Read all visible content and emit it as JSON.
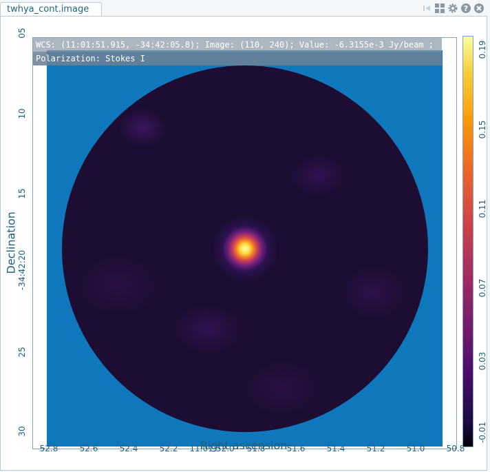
{
  "tab": {
    "label": "twhya_cont.image"
  },
  "toolbar": {
    "icons": [
      "first-frame-icon",
      "layout-grid-icon",
      "settings-gear-icon",
      "help-icon",
      "close-icon"
    ]
  },
  "cursor_info": {
    "wcs_line": "WCS: (11:01:51.915, -34:42:05.8); Image: (110, 240); Value: -6.3155e-3 Jy/beam ;",
    "polarization_line": "Polarization: Stokes I"
  },
  "axes": {
    "x_title": "Right ascension",
    "y_title": "Declination",
    "x_ticks": [
      "52.8",
      "52.6",
      "52.4",
      "52.2",
      "11:01:52.0",
      "51.8",
      "51.6",
      "51.4",
      "51.2",
      "51.0",
      "50.8"
    ],
    "y_ticks": [
      "05",
      "10",
      "15",
      "-34:42:20",
      "25",
      "30"
    ]
  },
  "colorbar": {
    "ticks": [
      "0.19",
      "0.15",
      "0.11",
      "0.07",
      "0.03",
      "-0.01"
    ],
    "colormap": "inferno"
  },
  "colors": {
    "background": "#0f77bb",
    "accent": "#1c5f80"
  }
}
